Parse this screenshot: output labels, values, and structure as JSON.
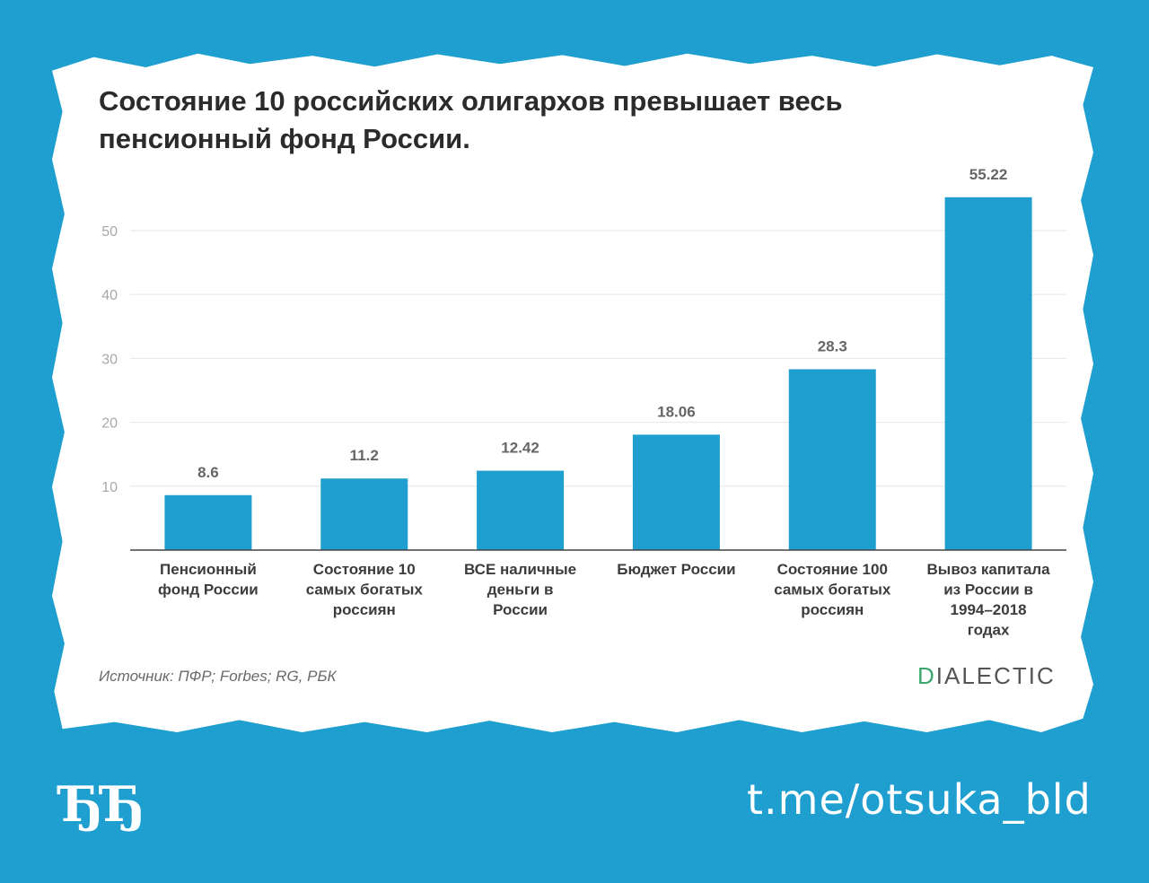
{
  "source": "Источник: ПФР; Forbes; RG, РБК",
  "logo": {
    "first": "D",
    "rest": "IALECTIC"
  },
  "brand_mark": "ЂЂ",
  "channel_link": "t.me/otsuka_bld",
  "colors": {
    "background": "#1f9fcf",
    "bar": "#1f9fcf",
    "card": "#ffffff",
    "logo_accent": "#3aa76d"
  },
  "chart_data": {
    "type": "bar",
    "title": "Состояние 10 российских олигархов превышает весь пенсионный фонд России.",
    "categories": [
      [
        "Пенсионный",
        "фонд России"
      ],
      [
        "Состояние 10",
        "самых богатых",
        "россиян"
      ],
      [
        "ВСЕ наличные",
        "деньги в",
        "России"
      ],
      [
        "Бюджет России"
      ],
      [
        "Состояние 100",
        "самых богатых",
        "россиян"
      ],
      [
        "Вывоз капитала",
        "из России в",
        "1994–2018",
        "годах"
      ]
    ],
    "values": [
      8.6,
      11.2,
      12.42,
      18.06,
      28.3,
      55.22
    ],
    "value_labels": [
      "8.6",
      "11.2",
      "12.42",
      "18.06",
      "28.3",
      "55.22"
    ],
    "yticks": [
      10,
      20,
      30,
      40,
      50
    ],
    "ylim": [
      0,
      58
    ],
    "grid": true,
    "legend": "none"
  }
}
